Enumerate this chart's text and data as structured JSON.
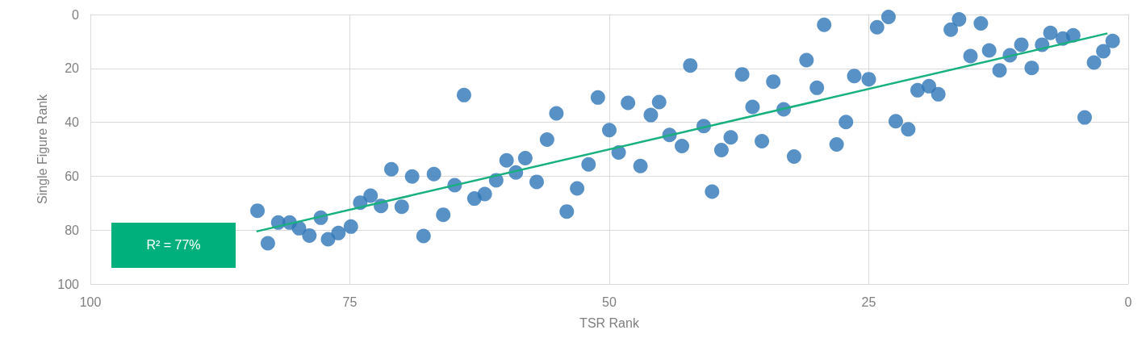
{
  "chart_data": {
    "type": "scatter",
    "xlabel": "TSR Rank",
    "ylabel": "Single Figure Rank",
    "xlim": [
      100,
      0
    ],
    "ylim": [
      100,
      0
    ],
    "xticks": [
      100,
      75,
      50,
      25,
      0
    ],
    "yticks": [
      0,
      20,
      40,
      60,
      80,
      100
    ],
    "grid": true,
    "annotations": [
      "R² = 77%"
    ],
    "series": [
      {
        "color": "#2e75b6",
        "marker": "circle",
        "x": [
          83.9,
          82.9,
          81.9,
          80.8,
          79.9,
          78.9,
          77.8,
          77.1,
          76.1,
          74.9,
          74,
          73,
          72,
          71,
          70,
          69,
          67.9,
          66.9,
          66,
          64.9,
          64,
          63,
          62,
          60.9,
          59.9,
          59,
          58.1,
          57,
          56,
          55.1,
          54.1,
          53.1,
          52,
          51.1,
          50,
          49.1,
          48.2,
          47,
          46,
          45.2,
          44.2,
          43,
          42.2,
          40.9,
          40.1,
          39.2,
          38.3,
          37.2,
          36.2,
          35.3,
          34.2,
          33.2,
          32.2,
          31,
          30,
          29.3,
          28.1,
          27.2,
          26.4,
          25,
          24.2,
          23.1,
          22.4,
          21.2,
          20.3,
          19.2,
          18.3,
          17.1,
          16.3,
          15.2,
          14.2,
          13.4,
          12.4,
          11.4,
          10.3,
          9.3,
          8.3,
          7.5,
          6.3,
          5.3,
          4.2,
          3.3,
          2.4,
          1.5
        ],
        "values": [
          72.8,
          84.9,
          77.2,
          77.2,
          79.3,
          82,
          75.4,
          83.4,
          81.1,
          78.7,
          69.8,
          67.2,
          71,
          57.4,
          71.3,
          60.1,
          82.2,
          59.2,
          74.3,
          63.3,
          29.9,
          68.3,
          66.6,
          61.5,
          54.1,
          58.6,
          53.3,
          62.1,
          46.4,
          36.7,
          73.1,
          64.5,
          55.6,
          30.8,
          42.9,
          51.2,
          32.8,
          56.2,
          37.3,
          32.5,
          44.7,
          48.8,
          18.9,
          41.4,
          65.7,
          50.3,
          45.6,
          22.2,
          34.3,
          47,
          24.9,
          35.2,
          52.7,
          16.9,
          27.2,
          3.8,
          48.2,
          39.9,
          22.8,
          24,
          4.7,
          0.9,
          39.6,
          42.6,
          28.1,
          26.6,
          29.6,
          5.6,
          1.8,
          15.4,
          3.3,
          13.3,
          20.7,
          15.1,
          11.2,
          19.8,
          11.2,
          6.8,
          8.9,
          7.7,
          38.2,
          17.8,
          13.6,
          9.8
        ]
      },
      {
        "type": "line",
        "marker": "none",
        "color": "#17b07e",
        "x": [
          84,
          2
        ],
        "values": [
          80.5,
          7
        ]
      }
    ]
  }
}
